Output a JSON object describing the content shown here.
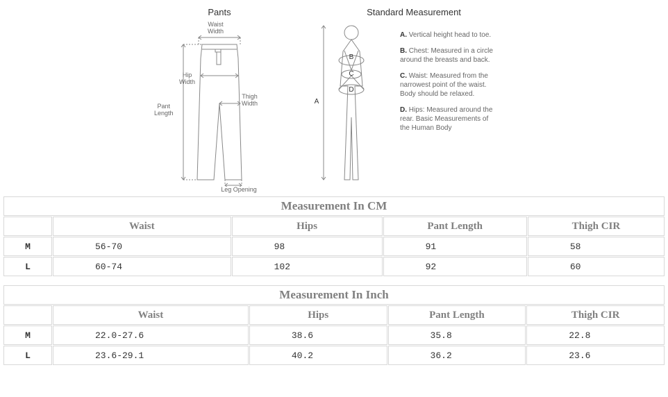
{
  "diagrams": {
    "pants": {
      "title": "Pants",
      "labels": {
        "waistWidth": "Waist\nWidth",
        "hipWidth": "Hip\nWidth",
        "thighWidth": "Thigh\nWidth",
        "pantLength": "Pant\nLength",
        "legOpening": "Leg Opening"
      }
    },
    "std": {
      "title": "Standard Measurement",
      "markers": {
        "A": "A",
        "B": "B",
        "C": "C",
        "D": "D"
      },
      "items": [
        {
          "key": "A.",
          "text": "Vertical height head to toe."
        },
        {
          "key": "B.",
          "text": "Chest: Measured in a circle around the breasts and back."
        },
        {
          "key": "C.",
          "text": "Waist: Measured from the narrowest point of the waist. Body should be relaxed."
        },
        {
          "key": "D.",
          "text": "Hips: Measured around the rear. Basic Measurements of the Human Body"
        }
      ]
    }
  },
  "tables": {
    "cm": {
      "title": "Measurement In CM",
      "columns": [
        "Waist",
        "Hips",
        "Pant Length",
        "Thigh CIR"
      ],
      "rows": [
        {
          "size": "M",
          "values": [
            "56-70",
            "98",
            "91",
            "58"
          ]
        },
        {
          "size": "L",
          "values": [
            "60-74",
            "102",
            "92",
            "60"
          ]
        }
      ]
    },
    "inch": {
      "title": "Measurement In Inch",
      "columns": [
        "Waist",
        "Hips",
        "Pant Length",
        "Thigh CIR"
      ],
      "rows": [
        {
          "size": "M",
          "values": [
            "22.0-27.6",
            "38.6",
            "35.8",
            "22.8"
          ]
        },
        {
          "size": "L",
          "values": [
            "23.6-29.1",
            "40.2",
            "36.2",
            "23.6"
          ]
        }
      ]
    }
  }
}
